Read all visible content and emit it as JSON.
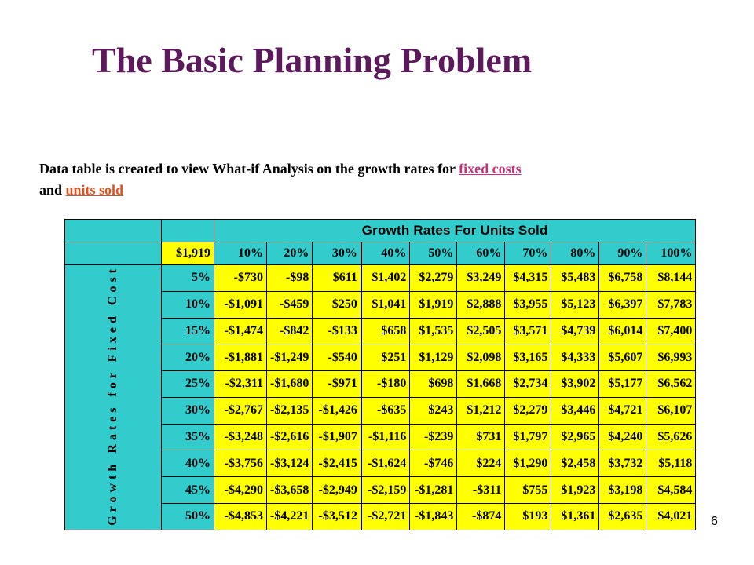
{
  "slide": {
    "title": "The Basic Planning Problem",
    "number": "6"
  },
  "description": {
    "text_before": "Data table is created to view What-if Analysis on the growth rates for ",
    "link_fixed": "fixed costs",
    "text_middle": " and ",
    "link_units": "units sold"
  },
  "table": {
    "col_axis_label": "Growth Rates For Units Sold",
    "row_axis_label": "Growth Rates for Fixed Cost",
    "corner_value": "$1,919",
    "col_headers": [
      "10%",
      "20%",
      "30%",
      "40%",
      "50%",
      "60%",
      "70%",
      "80%",
      "90%",
      "100%"
    ],
    "rows": [
      {
        "label": "5%",
        "values": [
          "-$730",
          "-$98",
          "$611",
          "$1,402",
          "$2,279",
          "$3,249",
          "$4,315",
          "$5,483",
          "$6,758",
          "$8,144"
        ]
      },
      {
        "label": "10%",
        "values": [
          "-$1,091",
          "-$459",
          "$250",
          "$1,041",
          "$1,919",
          "$2,888",
          "$3,955",
          "$5,123",
          "$6,397",
          "$7,783"
        ]
      },
      {
        "label": "15%",
        "values": [
          "-$1,474",
          "-$842",
          "-$133",
          "$658",
          "$1,535",
          "$2,505",
          "$3,571",
          "$4,739",
          "$6,014",
          "$7,400"
        ]
      },
      {
        "label": "20%",
        "values": [
          "-$1,881",
          "-$1,249",
          "-$540",
          "$251",
          "$1,129",
          "$2,098",
          "$3,165",
          "$4,333",
          "$5,607",
          "$6,993"
        ]
      },
      {
        "label": "25%",
        "values": [
          "-$2,311",
          "-$1,680",
          "-$971",
          "-$180",
          "$698",
          "$1,668",
          "$2,734",
          "$3,902",
          "$5,177",
          "$6,562"
        ]
      },
      {
        "label": "30%",
        "values": [
          "-$2,767",
          "-$2,135",
          "-$1,426",
          "-$635",
          "$243",
          "$1,212",
          "$2,279",
          "$3,446",
          "$4,721",
          "$6,107"
        ]
      },
      {
        "label": "35%",
        "values": [
          "-$3,248",
          "-$2,616",
          "-$1,907",
          "-$1,116",
          "-$239",
          "$731",
          "$1,797",
          "$2,965",
          "$4,240",
          "$5,626"
        ]
      },
      {
        "label": "40%",
        "values": [
          "-$3,756",
          "-$3,124",
          "-$2,415",
          "-$1,624",
          "-$746",
          "$224",
          "$1,290",
          "$2,458",
          "$3,732",
          "$5,118"
        ]
      },
      {
        "label": "45%",
        "values": [
          "-$4,290",
          "-$3,658",
          "-$2,949",
          "-$2,159",
          "-$1,281",
          "-$311",
          "$755",
          "$1,923",
          "$3,198",
          "$4,584"
        ]
      },
      {
        "label": "50%",
        "values": [
          "-$4,853",
          "-$4,221",
          "-$3,512",
          "-$2,721",
          "-$1,843",
          "-$874",
          "$193",
          "$1,361",
          "$2,635",
          "$4,021"
        ]
      }
    ]
  },
  "colors": {
    "title": "#5c1a5c",
    "cyan": "#33cccc",
    "yellow": "#ffff00",
    "link_fixed": "#c8307a",
    "link_units": "#e2501e"
  }
}
